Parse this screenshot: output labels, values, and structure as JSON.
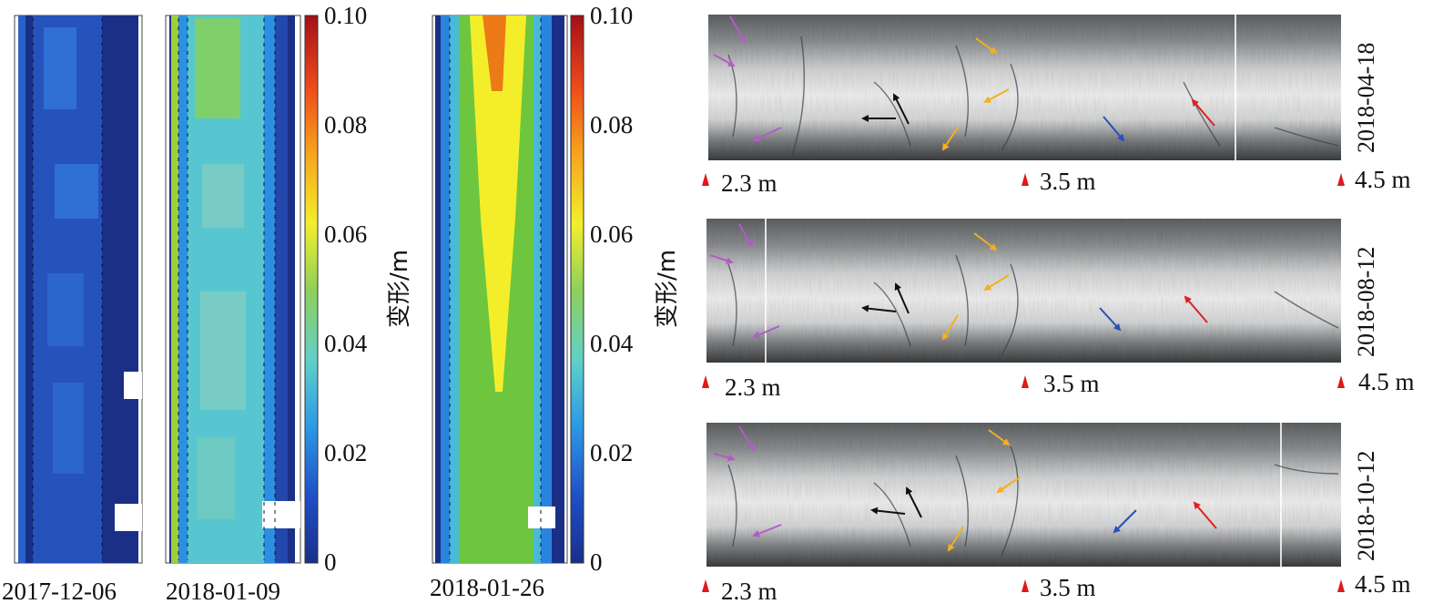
{
  "contour_maps": [
    {
      "date": "2017-12-06",
      "level": 0.012
    },
    {
      "date": "2018-01-09",
      "level": 0.03
    },
    {
      "date": "2018-01-26",
      "level": 0.055
    }
  ],
  "colorbar": {
    "title": "变形/m",
    "ticks": [
      "0.10",
      "0.08",
      "0.06",
      "0.04",
      "0.02",
      "0"
    ],
    "min": 0,
    "max": 0.1
  },
  "borehole_images": [
    {
      "date": "2018-04-18",
      "positions": [
        "2.3 m",
        "3.5 m",
        "4.5 m"
      ]
    },
    {
      "date": "2018-08-12",
      "positions": [
        "2.3 m",
        "3.5 m",
        "4.5 m"
      ]
    },
    {
      "date": "2018-10-12",
      "positions": [
        "2.3 m",
        "3.5 m",
        "4.5 m"
      ]
    }
  ],
  "arrow_colors": {
    "magenta": "#b25cc8",
    "black": "#111111",
    "orange": "#f2b01e",
    "blue": "#2a4fb8",
    "red": "#e02020"
  },
  "marker_color": "#e01818"
}
